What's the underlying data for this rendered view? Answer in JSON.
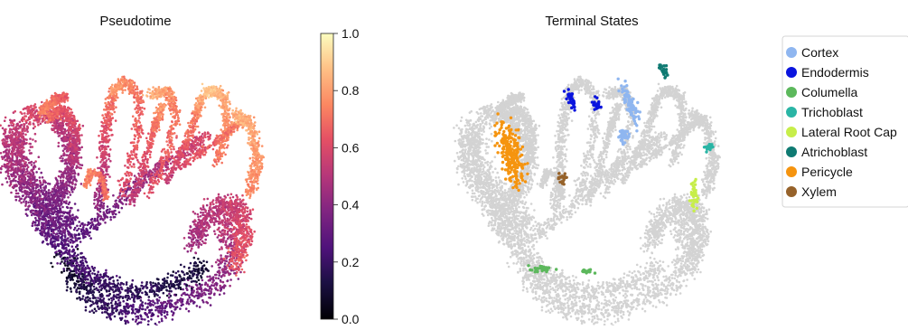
{
  "chart_data": [
    {
      "type": "scatter",
      "title": "Pseudotime",
      "xlabel": "",
      "ylabel": "",
      "colorbar": {
        "colormap": "magma",
        "range": [
          0.0,
          1.0
        ],
        "ticks": [
          "0.0",
          "0.2",
          "0.4",
          "0.6",
          "0.8",
          "1.0"
        ]
      },
      "point_color": "continuous pseudotime value 0.0-1.0 (magma)"
    },
    {
      "type": "scatter",
      "title": "Terminal States",
      "xlabel": "",
      "ylabel": "",
      "background_color": "#d3d3d3",
      "legend_position": "right",
      "legend": [
        {
          "label": "Cortex",
          "color": "#8fb6f0"
        },
        {
          "label": "Endodermis",
          "color": "#0a14de"
        },
        {
          "label": "Columella",
          "color": "#5cb85c"
        },
        {
          "label": "Trichoblast",
          "color": "#2ab5a5"
        },
        {
          "label": "Lateral Root Cap",
          "color": "#c7ee4a"
        },
        {
          "label": "Atrichoblast",
          "color": "#0f7a72"
        },
        {
          "label": "Pericycle",
          "color": "#f5940f"
        },
        {
          "label": "Xylem",
          "color": "#96622a"
        }
      ]
    }
  ]
}
